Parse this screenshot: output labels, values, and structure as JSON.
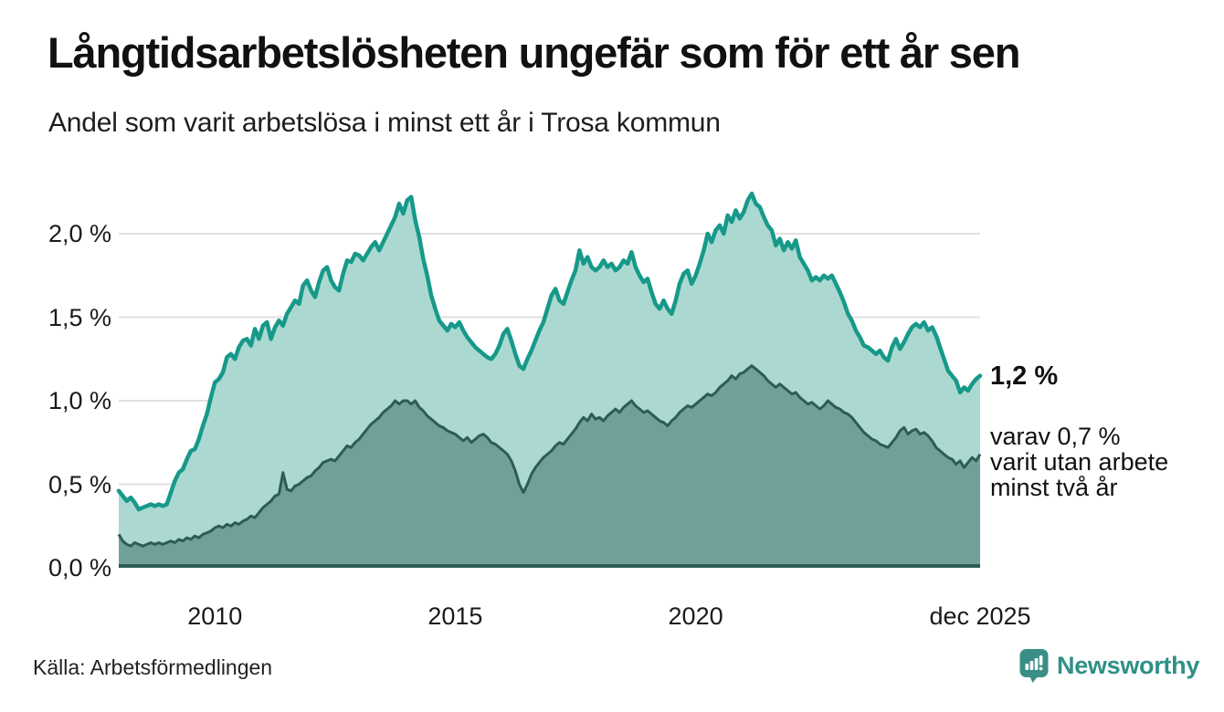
{
  "header": {
    "title": "Långtidsarbetslösheten ungefär som för ett år sen",
    "subtitle": "Andel som varit arbetslösa i minst ett år i Trosa kommun"
  },
  "annotations": {
    "total_end_label": "1,2 %",
    "secondary_line1": "varav 0,7 %",
    "secondary_line2": "varit utan arbete",
    "secondary_line3": "minst två år"
  },
  "source": {
    "text": "Källa: Arbetsförmedlingen"
  },
  "branding": {
    "wordmark": "Newsworthy",
    "wordmark_color": "#2f9087",
    "badge_color": "#3b8e85"
  },
  "chart_data": {
    "type": "area",
    "title": "Långtidsarbetslösheten ungefär som för ett år sen",
    "subtitle": "Andel som varit arbetslösa i minst ett år i Trosa kommun",
    "unit": "%",
    "x_start_year": 2008,
    "x_months": 216,
    "ylim": [
      0,
      2.3
    ],
    "grid": true,
    "grid_color": "#e0e0e0",
    "axis_color": "#2d5c53",
    "y_ticks": [
      {
        "label": "2,0 %",
        "value": 2.0
      },
      {
        "label": "1,5 %",
        "value": 1.5
      },
      {
        "label": "1,0 %",
        "value": 1.0
      },
      {
        "label": "0,5 %",
        "value": 0.5
      },
      {
        "label": "0,0 %",
        "value": 0.0
      }
    ],
    "x_ticks": [
      {
        "label": "2010",
        "month_index": 24
      },
      {
        "label": "2015",
        "month_index": 84
      },
      {
        "label": "2020",
        "month_index": 144
      },
      {
        "label": "dec 2025",
        "month_index": 215
      }
    ],
    "series": [
      {
        "name": "Arbetslösa minst ett år",
        "end_value": 1.2,
        "line_color": "#17998a",
        "fill_color": "#abd9d1",
        "values": [
          0.46,
          0.43,
          0.4,
          0.42,
          0.39,
          0.35,
          0.36,
          0.37,
          0.38,
          0.37,
          0.38,
          0.37,
          0.38,
          0.45,
          0.52,
          0.57,
          0.59,
          0.65,
          0.7,
          0.71,
          0.77,
          0.85,
          0.92,
          1.02,
          1.11,
          1.13,
          1.17,
          1.26,
          1.28,
          1.25,
          1.32,
          1.36,
          1.37,
          1.33,
          1.43,
          1.37,
          1.45,
          1.47,
          1.37,
          1.44,
          1.48,
          1.45,
          1.52,
          1.56,
          1.6,
          1.58,
          1.69,
          1.72,
          1.66,
          1.62,
          1.71,
          1.78,
          1.8,
          1.72,
          1.68,
          1.66,
          1.76,
          1.84,
          1.83,
          1.88,
          1.87,
          1.84,
          1.88,
          1.92,
          1.95,
          1.9,
          1.95,
          2.0,
          2.05,
          2.1,
          2.18,
          2.12,
          2.2,
          2.22,
          2.08,
          1.98,
          1.85,
          1.75,
          1.63,
          1.55,
          1.48,
          1.45,
          1.42,
          1.46,
          1.44,
          1.47,
          1.42,
          1.38,
          1.35,
          1.32,
          1.3,
          1.28,
          1.26,
          1.25,
          1.28,
          1.33,
          1.4,
          1.43,
          1.36,
          1.28,
          1.21,
          1.19,
          1.25,
          1.3,
          1.36,
          1.42,
          1.47,
          1.55,
          1.63,
          1.67,
          1.6,
          1.58,
          1.65,
          1.72,
          1.78,
          1.9,
          1.82,
          1.86,
          1.8,
          1.78,
          1.8,
          1.84,
          1.8,
          1.82,
          1.78,
          1.8,
          1.84,
          1.82,
          1.89,
          1.8,
          1.75,
          1.71,
          1.73,
          1.65,
          1.58,
          1.55,
          1.6,
          1.55,
          1.52,
          1.6,
          1.7,
          1.76,
          1.78,
          1.7,
          1.75,
          1.82,
          1.9,
          2.0,
          1.95,
          2.02,
          2.05,
          2.0,
          2.11,
          2.07,
          2.14,
          2.09,
          2.13,
          2.2,
          2.24,
          2.18,
          2.16,
          2.1,
          2.05,
          2.02,
          1.93,
          1.97,
          1.9,
          1.95,
          1.91,
          1.96,
          1.86,
          1.82,
          1.78,
          1.72,
          1.74,
          1.72,
          1.75,
          1.73,
          1.75,
          1.7,
          1.65,
          1.59,
          1.52,
          1.48,
          1.42,
          1.38,
          1.33,
          1.32,
          1.3,
          1.28,
          1.3,
          1.26,
          1.24,
          1.32,
          1.37,
          1.31,
          1.35,
          1.4,
          1.44,
          1.46,
          1.44,
          1.47,
          1.42,
          1.44,
          1.39,
          1.32,
          1.25,
          1.18,
          1.15,
          1.12,
          1.05,
          1.08,
          1.06,
          1.1,
          1.13,
          1.15
        ]
      },
      {
        "name": "varav varit utan arbete minst två år",
        "end_value": 0.7,
        "line_color": "#2d5c53",
        "fill_color": "#71a099",
        "values": [
          0.2,
          0.16,
          0.14,
          0.13,
          0.15,
          0.14,
          0.13,
          0.14,
          0.15,
          0.14,
          0.15,
          0.14,
          0.15,
          0.16,
          0.15,
          0.17,
          0.16,
          0.18,
          0.17,
          0.19,
          0.18,
          0.2,
          0.21,
          0.22,
          0.24,
          0.25,
          0.24,
          0.26,
          0.25,
          0.27,
          0.26,
          0.28,
          0.29,
          0.31,
          0.3,
          0.33,
          0.36,
          0.38,
          0.4,
          0.43,
          0.44,
          0.57,
          0.47,
          0.46,
          0.49,
          0.5,
          0.52,
          0.54,
          0.55,
          0.58,
          0.6,
          0.63,
          0.64,
          0.65,
          0.64,
          0.67,
          0.7,
          0.73,
          0.72,
          0.75,
          0.77,
          0.8,
          0.83,
          0.86,
          0.88,
          0.9,
          0.93,
          0.95,
          0.97,
          1.0,
          0.98,
          1.0,
          1.0,
          0.98,
          1.0,
          0.96,
          0.94,
          0.91,
          0.89,
          0.87,
          0.85,
          0.84,
          0.82,
          0.81,
          0.8,
          0.78,
          0.76,
          0.78,
          0.75,
          0.77,
          0.79,
          0.8,
          0.78,
          0.75,
          0.74,
          0.72,
          0.7,
          0.68,
          0.64,
          0.58,
          0.5,
          0.45,
          0.5,
          0.56,
          0.6,
          0.63,
          0.66,
          0.68,
          0.7,
          0.73,
          0.75,
          0.74,
          0.77,
          0.8,
          0.83,
          0.87,
          0.9,
          0.88,
          0.92,
          0.89,
          0.9,
          0.88,
          0.91,
          0.93,
          0.95,
          0.93,
          0.96,
          0.98,
          1.0,
          0.97,
          0.95,
          0.93,
          0.94,
          0.92,
          0.9,
          0.88,
          0.87,
          0.85,
          0.88,
          0.9,
          0.93,
          0.95,
          0.97,
          0.96,
          0.98,
          1.0,
          1.02,
          1.04,
          1.03,
          1.05,
          1.08,
          1.1,
          1.12,
          1.15,
          1.13,
          1.16,
          1.17,
          1.19,
          1.21,
          1.19,
          1.17,
          1.15,
          1.12,
          1.1,
          1.08,
          1.1,
          1.08,
          1.06,
          1.04,
          1.05,
          1.02,
          1.0,
          0.98,
          0.99,
          0.97,
          0.95,
          0.97,
          1.0,
          0.98,
          0.96,
          0.95,
          0.93,
          0.92,
          0.9,
          0.87,
          0.84,
          0.81,
          0.79,
          0.77,
          0.76,
          0.74,
          0.73,
          0.72,
          0.75,
          0.78,
          0.82,
          0.84,
          0.8,
          0.82,
          0.83,
          0.8,
          0.81,
          0.79,
          0.76,
          0.72,
          0.7,
          0.68,
          0.66,
          0.65,
          0.62,
          0.64,
          0.6,
          0.63,
          0.66,
          0.64,
          0.68
        ]
      }
    ]
  }
}
